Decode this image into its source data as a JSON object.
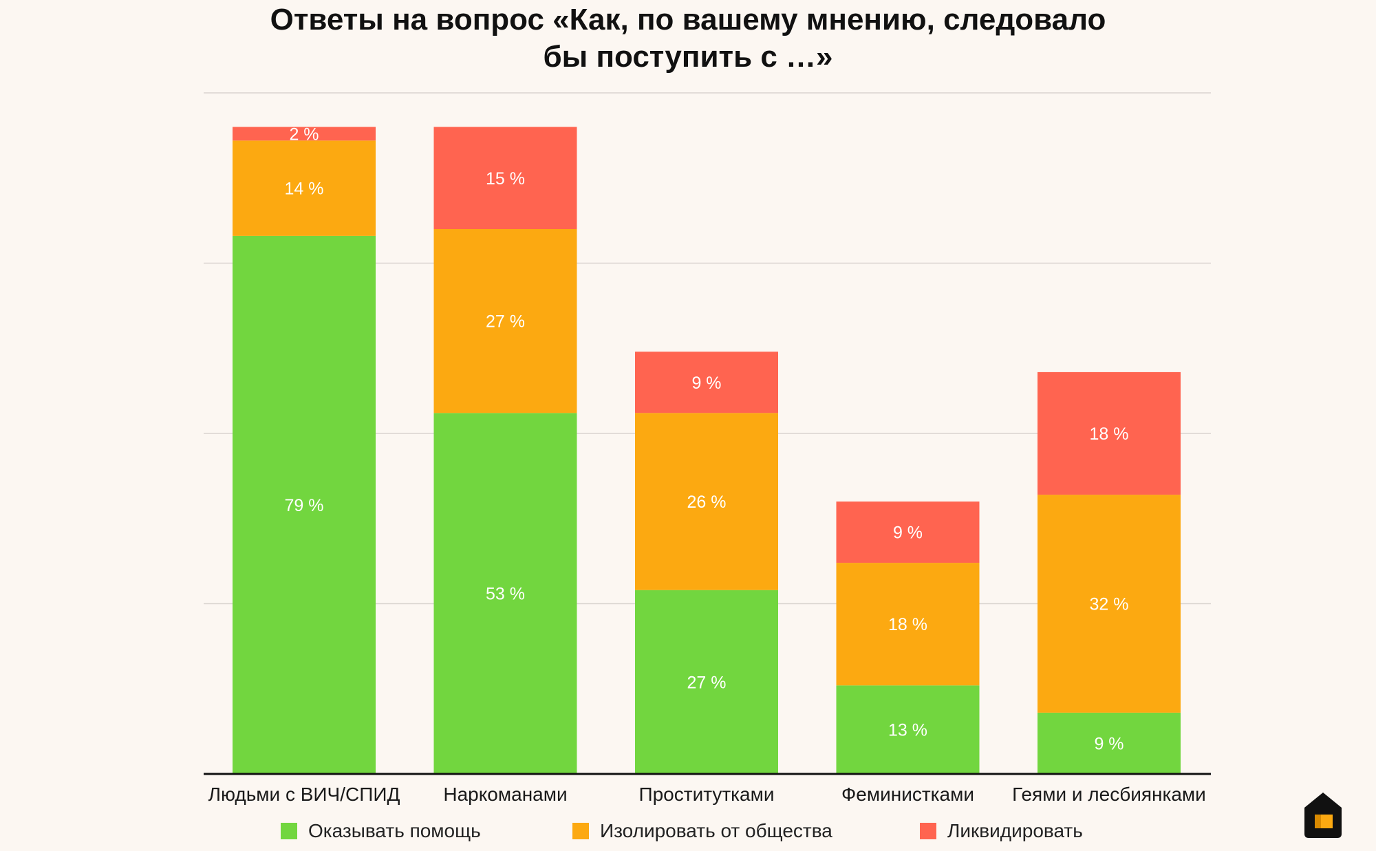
{
  "chart_data": {
    "type": "bar",
    "stacked": true,
    "title_lines": [
      "Ответы на вопрос «Как, по вашему мнению, следовало",
      "бы поступить с …»"
    ],
    "categories": [
      "Людьми с ВИЧ/СПИД",
      "Наркоманами",
      "Проститутками",
      "Феминистками",
      "Геями и лесбиянками"
    ],
    "series": [
      {
        "name": "Оказывать помощь",
        "color": "#72d63f",
        "values": [
          79,
          53,
          27,
          13,
          9
        ],
        "labels": [
          "79 %",
          "53 %",
          "27 %",
          "13 %",
          "9 %"
        ]
      },
      {
        "name": "Изолировать от общества",
        "color": "#fca911",
        "values": [
          14,
          27,
          26,
          18,
          32
        ],
        "labels": [
          "14 %",
          "27 %",
          "26 %",
          "18 %",
          "32 %"
        ]
      },
      {
        "name": "Ликвидировать",
        "color": "#ff6450",
        "values": [
          2,
          15,
          9,
          9,
          18
        ],
        "labels": [
          "2 %",
          "15 %",
          "9 %",
          "9 %",
          "18 %"
        ]
      }
    ],
    "ylim": [
      0,
      100
    ],
    "yticks": [
      0,
      25,
      50,
      75,
      100
    ],
    "grid": true,
    "legend_position": "bottom"
  },
  "logo": {
    "icon": "house-icon",
    "bg": "#111111",
    "accent": "#fca911"
  }
}
